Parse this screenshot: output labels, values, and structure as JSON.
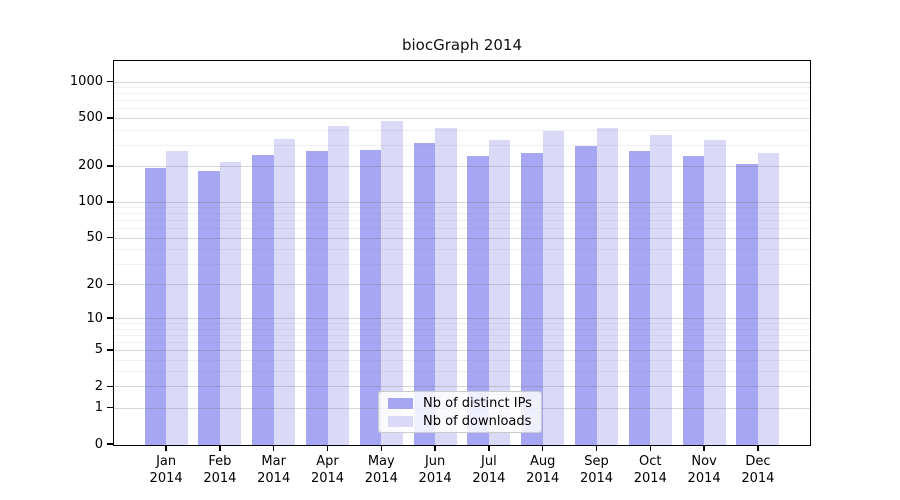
{
  "title": "biocGraph 2014",
  "colors": {
    "bar_dark": "#a6a6f2",
    "bar_light": "#dadaf8",
    "grid_major": "rgba(110,110,110,0.28)",
    "grid_minor": "rgba(140,140,140,0.13)",
    "axis": "#000000",
    "legend_border": "#cbcbcb"
  },
  "legend": {
    "items": [
      {
        "label": "Nb of distinct IPs",
        "color_key": "bar_dark"
      },
      {
        "label": "Nb of downloads",
        "color_key": "bar_light"
      }
    ]
  },
  "chart_data": {
    "type": "bar",
    "title": "biocGraph 2014",
    "categories": [
      "Jan 2014",
      "Feb 2014",
      "Mar 2014",
      "Apr 2014",
      "May 2014",
      "Jun 2014",
      "Jul 2014",
      "Aug 2014",
      "Sep 2014",
      "Oct 2014",
      "Nov 2014",
      "Dec 2014"
    ],
    "series": [
      {
        "name": "Nb of distinct IPs",
        "color_key": "bar_dark",
        "values": [
          193,
          180,
          244,
          263,
          272,
          310,
          239,
          255,
          294,
          263,
          239,
          206
        ]
      },
      {
        "name": "Nb of downloads",
        "color_key": "bar_light",
        "values": [
          267,
          217,
          336,
          425,
          475,
          413,
          330,
          392,
          413,
          358,
          330,
          255
        ]
      }
    ],
    "xlabel": "",
    "ylabel": "",
    "y_scale": "log1p",
    "y_ticks": [
      0,
      1,
      2,
      5,
      10,
      20,
      50,
      100,
      200,
      500,
      1000
    ],
    "y_minor_ticks": [
      3,
      4,
      6,
      7,
      8,
      9,
      30,
      40,
      60,
      70,
      80,
      90,
      300,
      400,
      600,
      700,
      800,
      900
    ],
    "ylim": [
      0,
      1530
    ],
    "grid": "horizontal",
    "legend_position": "lower-center-inside"
  }
}
